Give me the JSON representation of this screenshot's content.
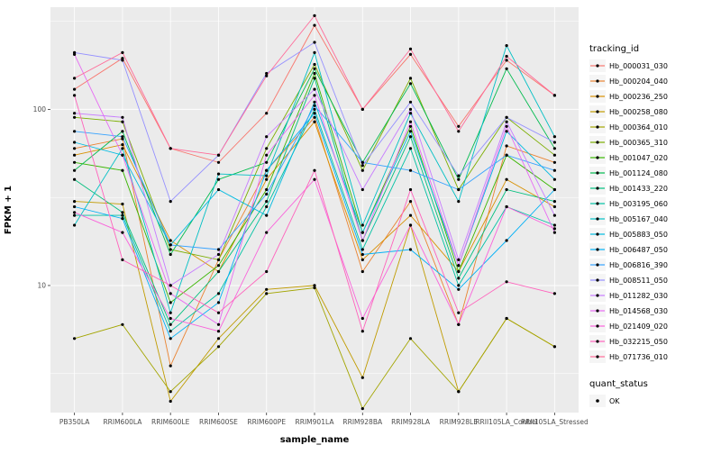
{
  "legend": {
    "tracking_title": "tracking_id",
    "quant_title": "quant_status",
    "quant_label": "OK"
  },
  "panel": {
    "background": "#EBEBEB",
    "grid_color": "#FFFFFF",
    "point_color": "#000000"
  },
  "chart_data": {
    "type": "line",
    "title": "",
    "xlabel": "sample_name",
    "ylabel": "FPKM + 1",
    "y_scale": "log10",
    "ylim": [
      1.9,
      380
    ],
    "yticks": [
      10,
      100
    ],
    "ytick_labels": [
      "10",
      "100"
    ],
    "grid": true,
    "legend_position": "right",
    "categories": [
      "PB350LA",
      "RRIM600LA",
      "RRIM600LE",
      "RRIM600SE",
      "RRIM600PE",
      "RRIM901LA",
      "RRIM928BA",
      "RRIM928LA",
      "RRIM928LE",
      "RRII105LA_Control",
      "RRII105LA_Stressed"
    ],
    "series": [
      {
        "name": "Hb_000031_030",
        "color": "#F8766D",
        "values": [
          130,
          195,
          60,
          50,
          95,
          300,
          100,
          205,
          80,
          190,
          120
        ]
      },
      {
        "name": "Hb_000204_040",
        "color": "#EA8331",
        "values": [
          60,
          68,
          3.5,
          14,
          45,
          90,
          12,
          30,
          6,
          62,
          50
        ]
      },
      {
        "name": "Hb_000236_250",
        "color": "#D89000",
        "values": [
          55,
          63,
          18,
          12,
          40,
          85,
          14,
          25,
          12,
          40,
          28
        ]
      },
      {
        "name": "Hb_000258_080",
        "color": "#C09B00",
        "values": [
          30,
          29,
          2.2,
          5,
          9.5,
          10,
          3,
          22,
          2.5,
          6.5,
          4.5
        ]
      },
      {
        "name": "Hb_000364_010",
        "color": "#A3A500",
        "values": [
          5,
          6,
          2.5,
          4.5,
          9,
          9.7,
          2,
          5,
          2.5,
          6.5,
          4.5
        ]
      },
      {
        "name": "Hb_000365_310",
        "color": "#7CAE00",
        "values": [
          90,
          85,
          16,
          14,
          60,
          180,
          45,
          150,
          35,
          90,
          55
        ]
      },
      {
        "name": "Hb_001047_020",
        "color": "#39B600",
        "values": [
          50,
          45,
          8,
          13,
          35,
          160,
          20,
          80,
          12,
          55,
          35
        ]
      },
      {
        "name": "Hb_001124_080",
        "color": "#00BB4E",
        "values": [
          45,
          75,
          15,
          40,
          50,
          170,
          50,
          140,
          40,
          170,
          60
        ]
      },
      {
        "name": "Hb_001433_220",
        "color": "#00BF7D",
        "values": [
          40,
          26,
          6,
          12,
          30,
          150,
          18,
          70,
          11,
          35,
          30
        ]
      },
      {
        "name": "Hb_003195_060",
        "color": "#00C1A3",
        "values": [
          25,
          25,
          5.5,
          9,
          28,
          100,
          16,
          60,
          10,
          28,
          22
        ]
      },
      {
        "name": "Hb_005167_040",
        "color": "#00BFC4",
        "values": [
          22,
          60,
          7,
          43,
          42,
          210,
          22,
          95,
          30,
          230,
          70
        ]
      },
      {
        "name": "Hb_005883_050",
        "color": "#00BAE0",
        "values": [
          65,
          55,
          17,
          35,
          25,
          110,
          20,
          75,
          13,
          75,
          40
        ]
      },
      {
        "name": "Hb_006487_050",
        "color": "#00B0F6",
        "values": [
          28,
          24,
          5,
          8,
          45,
          95,
          15,
          16,
          9.5,
          18,
          35
        ]
      },
      {
        "name": "Hb_006816_390",
        "color": "#35A2FF",
        "values": [
          75,
          70,
          17,
          16,
          33,
          105,
          50,
          45,
          35,
          55,
          45
        ]
      },
      {
        "name": "Hb_008511_050",
        "color": "#9590FF",
        "values": [
          210,
          190,
          30,
          55,
          160,
          240,
          48,
          110,
          42,
          90,
          65
        ]
      },
      {
        "name": "Hb_011282_030",
        "color": "#C77CFF",
        "values": [
          95,
          90,
          10,
          15,
          70,
          130,
          35,
          100,
          14,
          85,
          25
        ]
      },
      {
        "name": "Hb_014568_030",
        "color": "#E76BF3",
        "values": [
          205,
          55,
          9,
          6,
          55,
          120,
          18,
          85,
          13,
          80,
          20
        ]
      },
      {
        "name": "Hb_021409_020",
        "color": "#FA62DB",
        "values": [
          26,
          20,
          6.5,
          5.5,
          20,
          40,
          6.5,
          22,
          6,
          28,
          21
        ]
      },
      {
        "name": "Hb_032215_050",
        "color": "#FF62BC",
        "values": [
          120,
          14,
          10,
          7,
          12,
          45,
          5.5,
          35,
          7,
          10.5,
          9
        ]
      },
      {
        "name": "Hb_071736_010",
        "color": "#FF6A98",
        "values": [
          150,
          210,
          60,
          55,
          155,
          340,
          100,
          220,
          75,
          200,
          120
        ]
      }
    ]
  }
}
